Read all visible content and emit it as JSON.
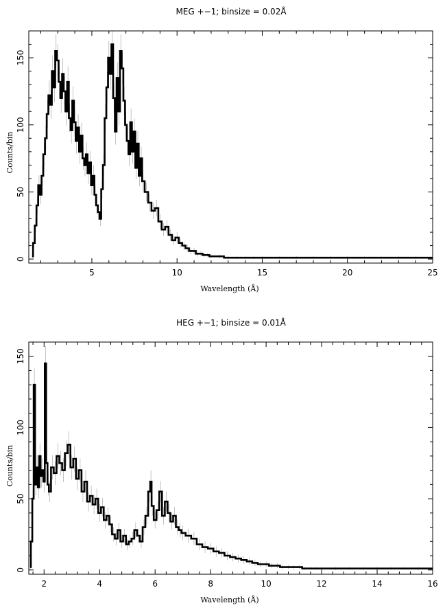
{
  "chart_data": [
    {
      "type": "line",
      "title": "MEG +−1; binsize = 0.02Å",
      "xlabel": "Wavelength (Å)",
      "ylabel": "Counts/bin",
      "xlim": [
        1.3,
        25
      ],
      "ylim": [
        -3,
        170
      ],
      "xticks": [
        5,
        10,
        15,
        20,
        25
      ],
      "yticks": [
        0,
        50,
        100,
        150
      ],
      "grid": false,
      "style": "histogram step with grey error bars",
      "series": [
        {
          "x": [
            1.5,
            1.6,
            1.7,
            1.8,
            1.9,
            2.0,
            2.1,
            2.2,
            2.3,
            2.4,
            2.5,
            2.6,
            2.7,
            2.8,
            2.9,
            3.0,
            3.1,
            3.2,
            3.3,
            3.4,
            3.5,
            3.6,
            3.7,
            3.8,
            3.9,
            4.0,
            4.1,
            4.2,
            4.3,
            4.4,
            4.5,
            4.6,
            4.7,
            4.8,
            4.9,
            5.0,
            5.1,
            5.2,
            5.3,
            5.4,
            5.5,
            5.6,
            5.7,
            5.8,
            5.9,
            6.0,
            6.1,
            6.2,
            6.3,
            6.4,
            6.5,
            6.6,
            6.7,
            6.8,
            6.9,
            7.0,
            7.1,
            7.2,
            7.3,
            7.4,
            7.5,
            7.6,
            7.7,
            7.8,
            7.9,
            8.0,
            8.2,
            8.4,
            8.6,
            8.8,
            9.0,
            9.2,
            9.4,
            9.6,
            9.8,
            10.0,
            10.2,
            10.4,
            10.6,
            10.8,
            11.0,
            11.2,
            11.4,
            11.6,
            11.8,
            12.0,
            12.5,
            13.0,
            13.5,
            14.0,
            14.5,
            15.0,
            16.0,
            17.0,
            18.0,
            19.0,
            20.0,
            21.0,
            22.0,
            23.0,
            24.0,
            25.0
          ],
          "y": [
            2,
            12,
            25,
            40,
            55,
            48,
            62,
            78,
            90,
            108,
            122,
            115,
            140,
            128,
            155,
            148,
            132,
            120,
            138,
            125,
            110,
            132,
            105,
            96,
            118,
            102,
            88,
            98,
            80,
            92,
            75,
            70,
            78,
            64,
            72,
            55,
            62,
            48,
            40,
            35,
            30,
            52,
            70,
            105,
            128,
            150,
            138,
            160,
            120,
            95,
            135,
            110,
            155,
            142,
            118,
            100,
            88,
            78,
            102,
            80,
            95,
            68,
            86,
            62,
            75,
            58,
            50,
            42,
            36,
            38,
            28,
            22,
            24,
            18,
            14,
            16,
            12,
            10,
            8,
            6,
            6,
            4,
            4,
            3,
            3,
            2,
            2,
            1,
            1,
            1,
            1,
            1,
            1,
            1,
            1,
            1,
            1,
            1,
            1,
            1,
            1,
            1
          ]
        }
      ]
    },
    {
      "type": "line",
      "title": "HEG +−1; binsize = 0.01Å",
      "xlabel": "Wavelength (Å)",
      "ylabel": "Counts/bin",
      "xlim": [
        1.45,
        16
      ],
      "ylim": [
        -3,
        160
      ],
      "xticks": [
        2,
        4,
        6,
        8,
        10,
        12,
        14,
        16
      ],
      "yticks": [
        0,
        50,
        100,
        150
      ],
      "grid": false,
      "style": "histogram step with grey error bars",
      "series": [
        {
          "x": [
            1.5,
            1.55,
            1.6,
            1.65,
            1.7,
            1.75,
            1.8,
            1.85,
            1.9,
            1.95,
            2.0,
            2.05,
            2.1,
            2.15,
            2.2,
            2.3,
            2.4,
            2.5,
            2.6,
            2.7,
            2.8,
            2.9,
            3.0,
            3.1,
            3.2,
            3.3,
            3.4,
            3.5,
            3.6,
            3.7,
            3.8,
            3.9,
            4.0,
            4.1,
            4.2,
            4.3,
            4.4,
            4.5,
            4.6,
            4.7,
            4.8,
            4.9,
            5.0,
            5.1,
            5.2,
            5.3,
            5.4,
            5.5,
            5.6,
            5.7,
            5.8,
            5.85,
            5.9,
            6.0,
            6.1,
            6.2,
            6.3,
            6.4,
            6.5,
            6.6,
            6.7,
            6.8,
            6.9,
            7.0,
            7.2,
            7.4,
            7.6,
            7.8,
            8.0,
            8.2,
            8.4,
            8.6,
            8.8,
            9.0,
            9.2,
            9.4,
            9.6,
            9.8,
            10.0,
            10.2,
            10.4,
            10.6,
            10.8,
            11.0,
            11.2,
            11.4,
            11.6,
            11.8,
            12.0,
            12.5,
            13.0,
            13.5,
            14.0,
            14.5,
            15.0,
            15.5,
            16.0
          ],
          "y": [
            2,
            20,
            50,
            130,
            60,
            72,
            58,
            80,
            66,
            70,
            62,
            145,
            75,
            60,
            55,
            72,
            68,
            80,
            75,
            70,
            82,
            88,
            72,
            78,
            64,
            70,
            55,
            62,
            48,
            52,
            46,
            50,
            40,
            44,
            35,
            38,
            32,
            25,
            22,
            28,
            20,
            24,
            18,
            20,
            22,
            28,
            24,
            20,
            30,
            38,
            55,
            62,
            45,
            35,
            42,
            55,
            38,
            48,
            40,
            34,
            38,
            30,
            28,
            26,
            24,
            22,
            18,
            16,
            15,
            13,
            12,
            10,
            9,
            8,
            7,
            6,
            5,
            4,
            4,
            3,
            3,
            2,
            2,
            2,
            2,
            1,
            1,
            1,
            1,
            1,
            1,
            1,
            1,
            1,
            1,
            1,
            1
          ]
        }
      ]
    }
  ]
}
